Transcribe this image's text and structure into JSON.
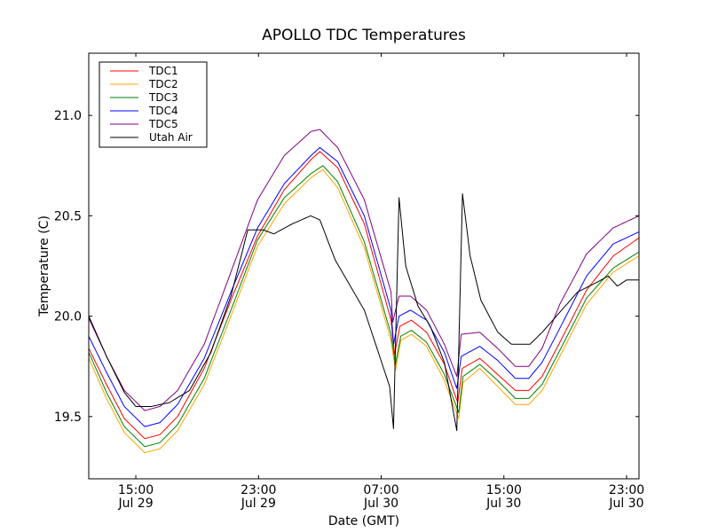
{
  "chart_data": {
    "type": "line",
    "title": "APOLLO TDC Temperatures",
    "xlabel": "Date (GMT)",
    "ylabel": "Temperature (C)",
    "x_units": "hours since Jul 29 00:00 GMT",
    "xlim": [
      11.93,
      47.81
    ],
    "ylim": [
      19.19,
      21.31
    ],
    "grid": false,
    "legend_position": "top-left",
    "yticks": [
      {
        "value": 19.5,
        "label": "19.5"
      },
      {
        "value": 20.0,
        "label": "20.0"
      },
      {
        "value": 20.5,
        "label": "20.5"
      },
      {
        "value": 21.0,
        "label": "21.0"
      }
    ],
    "xticks": [
      {
        "value": 15,
        "label1": "15:00",
        "label2": "Jul 29"
      },
      {
        "value": 23,
        "label1": "23:00",
        "label2": "Jul 29"
      },
      {
        "value": 31,
        "label1": "07:00",
        "label2": "Jul 30"
      },
      {
        "value": 39,
        "label1": "15:00",
        "label2": "Jul 30"
      },
      {
        "value": 47,
        "label1": "23:00",
        "label2": "Jul 30"
      }
    ],
    "series": [
      {
        "name": "TDC1",
        "color": "#ff0000",
        "points": [
          [
            11.93,
            19.84
          ],
          [
            13.09,
            19.66
          ],
          [
            14.25,
            19.49
          ],
          [
            15.58,
            19.39
          ],
          [
            16.57,
            19.41
          ],
          [
            17.72,
            19.5
          ],
          [
            19.46,
            19.74
          ],
          [
            21.2,
            20.08
          ],
          [
            22.94,
            20.4
          ],
          [
            24.68,
            20.63
          ],
          [
            26.42,
            20.78
          ],
          [
            27.0,
            20.82
          ],
          [
            28.16,
            20.74
          ],
          [
            29.9,
            20.46
          ],
          [
            31.64,
            19.98
          ],
          [
            31.87,
            19.81
          ],
          [
            32.22,
            19.95
          ],
          [
            32.97,
            19.98
          ],
          [
            33.96,
            19.92
          ],
          [
            35.12,
            19.76
          ],
          [
            35.99,
            19.57
          ],
          [
            36.28,
            19.74
          ],
          [
            37.43,
            19.79
          ],
          [
            38.59,
            19.71
          ],
          [
            39.75,
            19.63
          ],
          [
            40.62,
            19.63
          ],
          [
            41.49,
            19.7
          ],
          [
            42.65,
            19.87
          ],
          [
            44.39,
            20.13
          ],
          [
            46.13,
            20.3
          ],
          [
            47.81,
            20.39
          ]
        ]
      },
      {
        "name": "TDC2",
        "color": "#ffa500",
        "points": [
          [
            11.93,
            19.79
          ],
          [
            13.09,
            19.59
          ],
          [
            14.25,
            19.42
          ],
          [
            15.58,
            19.32
          ],
          [
            16.57,
            19.34
          ],
          [
            17.72,
            19.43
          ],
          [
            19.46,
            19.66
          ],
          [
            21.2,
            20.0
          ],
          [
            22.94,
            20.35
          ],
          [
            24.68,
            20.56
          ],
          [
            26.42,
            20.69
          ],
          [
            27.2,
            20.73
          ],
          [
            28.16,
            20.64
          ],
          [
            29.9,
            20.34
          ],
          [
            31.64,
            19.88
          ],
          [
            31.93,
            19.73
          ],
          [
            32.28,
            19.88
          ],
          [
            32.97,
            19.91
          ],
          [
            33.96,
            19.85
          ],
          [
            35.12,
            19.68
          ],
          [
            36.05,
            19.49
          ],
          [
            36.34,
            19.67
          ],
          [
            37.43,
            19.74
          ],
          [
            38.59,
            19.65
          ],
          [
            39.75,
            19.56
          ],
          [
            40.62,
            19.56
          ],
          [
            41.49,
            19.63
          ],
          [
            42.65,
            19.8
          ],
          [
            44.39,
            20.06
          ],
          [
            46.13,
            20.22
          ],
          [
            47.81,
            20.3
          ]
        ]
      },
      {
        "name": "TDC3",
        "color": "#008000",
        "points": [
          [
            11.93,
            19.82
          ],
          [
            13.09,
            19.62
          ],
          [
            14.25,
            19.45
          ],
          [
            15.58,
            19.35
          ],
          [
            16.57,
            19.37
          ],
          [
            17.72,
            19.46
          ],
          [
            19.46,
            19.69
          ],
          [
            21.2,
            20.03
          ],
          [
            22.94,
            20.38
          ],
          [
            24.68,
            20.59
          ],
          [
            26.42,
            20.71
          ],
          [
            27.2,
            20.75
          ],
          [
            28.16,
            20.67
          ],
          [
            29.9,
            20.37
          ],
          [
            31.64,
            19.91
          ],
          [
            31.93,
            19.76
          ],
          [
            32.28,
            19.9
          ],
          [
            32.97,
            19.93
          ],
          [
            33.96,
            19.87
          ],
          [
            35.12,
            19.71
          ],
          [
            36.05,
            19.52
          ],
          [
            36.34,
            19.7
          ],
          [
            37.43,
            19.76
          ],
          [
            38.59,
            19.68
          ],
          [
            39.75,
            19.59
          ],
          [
            40.62,
            19.59
          ],
          [
            41.49,
            19.66
          ],
          [
            42.65,
            19.83
          ],
          [
            44.39,
            20.09
          ],
          [
            46.13,
            20.24
          ],
          [
            47.81,
            20.32
          ]
        ]
      },
      {
        "name": "TDC4",
        "color": "#0000ff",
        "points": [
          [
            11.93,
            19.9
          ],
          [
            13.09,
            19.72
          ],
          [
            14.25,
            19.55
          ],
          [
            15.58,
            19.45
          ],
          [
            16.57,
            19.47
          ],
          [
            17.72,
            19.56
          ],
          [
            19.46,
            19.79
          ],
          [
            21.2,
            20.12
          ],
          [
            22.94,
            20.44
          ],
          [
            24.68,
            20.66
          ],
          [
            26.42,
            20.8
          ],
          [
            27.0,
            20.84
          ],
          [
            28.16,
            20.77
          ],
          [
            29.9,
            20.5
          ],
          [
            31.64,
            20.03
          ],
          [
            31.81,
            19.86
          ],
          [
            32.16,
            20.0
          ],
          [
            32.91,
            20.03
          ],
          [
            33.96,
            19.98
          ],
          [
            35.12,
            19.82
          ],
          [
            35.93,
            19.64
          ],
          [
            36.22,
            19.8
          ],
          [
            37.43,
            19.85
          ],
          [
            38.59,
            19.78
          ],
          [
            39.75,
            19.69
          ],
          [
            40.62,
            19.69
          ],
          [
            41.49,
            19.77
          ],
          [
            42.65,
            19.94
          ],
          [
            44.39,
            20.2
          ],
          [
            46.13,
            20.36
          ],
          [
            47.81,
            20.42
          ]
        ]
      },
      {
        "name": "TDC5",
        "color": "#800080",
        "points": [
          [
            11.93,
            19.99
          ],
          [
            13.09,
            19.8
          ],
          [
            14.25,
            19.63
          ],
          [
            15.58,
            19.53
          ],
          [
            16.57,
            19.55
          ],
          [
            17.72,
            19.63
          ],
          [
            19.46,
            19.86
          ],
          [
            21.2,
            20.22
          ],
          [
            22.94,
            20.58
          ],
          [
            24.68,
            20.8
          ],
          [
            26.42,
            20.92
          ],
          [
            27.0,
            20.93
          ],
          [
            28.16,
            20.84
          ],
          [
            29.9,
            20.58
          ],
          [
            31.64,
            20.12
          ],
          [
            31.75,
            19.97
          ],
          [
            32.16,
            20.1
          ],
          [
            32.91,
            20.1
          ],
          [
            33.96,
            20.03
          ],
          [
            35.12,
            19.86
          ],
          [
            35.93,
            19.7
          ],
          [
            36.22,
            19.91
          ],
          [
            37.43,
            19.92
          ],
          [
            38.59,
            19.84
          ],
          [
            39.75,
            19.75
          ],
          [
            40.62,
            19.75
          ],
          [
            41.49,
            19.84
          ],
          [
            42.65,
            20.06
          ],
          [
            44.39,
            20.31
          ],
          [
            46.13,
            20.44
          ],
          [
            47.81,
            20.5
          ]
        ]
      },
      {
        "name": "Utah Air",
        "color": "#000000",
        "points": [
          [
            11.93,
            20.0
          ],
          [
            13.09,
            19.8
          ],
          [
            14.25,
            19.62
          ],
          [
            15.0,
            19.55
          ],
          [
            16.0,
            19.55
          ],
          [
            17.2,
            19.57
          ],
          [
            18.5,
            19.63
          ],
          [
            19.9,
            19.82
          ],
          [
            21.2,
            20.1
          ],
          [
            22.3,
            20.43
          ],
          [
            23.3,
            20.43
          ],
          [
            24.0,
            20.41
          ],
          [
            25.2,
            20.46
          ],
          [
            26.4,
            20.5
          ],
          [
            27.0,
            20.48
          ],
          [
            28.0,
            20.28
          ],
          [
            29.9,
            20.03
          ],
          [
            31.55,
            19.65
          ],
          [
            31.8,
            19.44
          ],
          [
            32.16,
            20.59
          ],
          [
            32.6,
            20.25
          ],
          [
            33.4,
            20.05
          ],
          [
            34.2,
            19.95
          ],
          [
            35.12,
            19.77
          ],
          [
            35.93,
            19.43
          ],
          [
            36.3,
            20.61
          ],
          [
            36.8,
            20.3
          ],
          [
            37.5,
            20.08
          ],
          [
            38.6,
            19.92
          ],
          [
            39.5,
            19.86
          ],
          [
            40.7,
            19.86
          ],
          [
            41.5,
            19.92
          ],
          [
            42.65,
            20.02
          ],
          [
            43.8,
            20.12
          ],
          [
            45.1,
            20.17
          ],
          [
            45.8,
            20.2
          ],
          [
            46.4,
            20.15
          ],
          [
            47.0,
            20.18
          ],
          [
            47.81,
            20.18
          ]
        ]
      }
    ]
  }
}
